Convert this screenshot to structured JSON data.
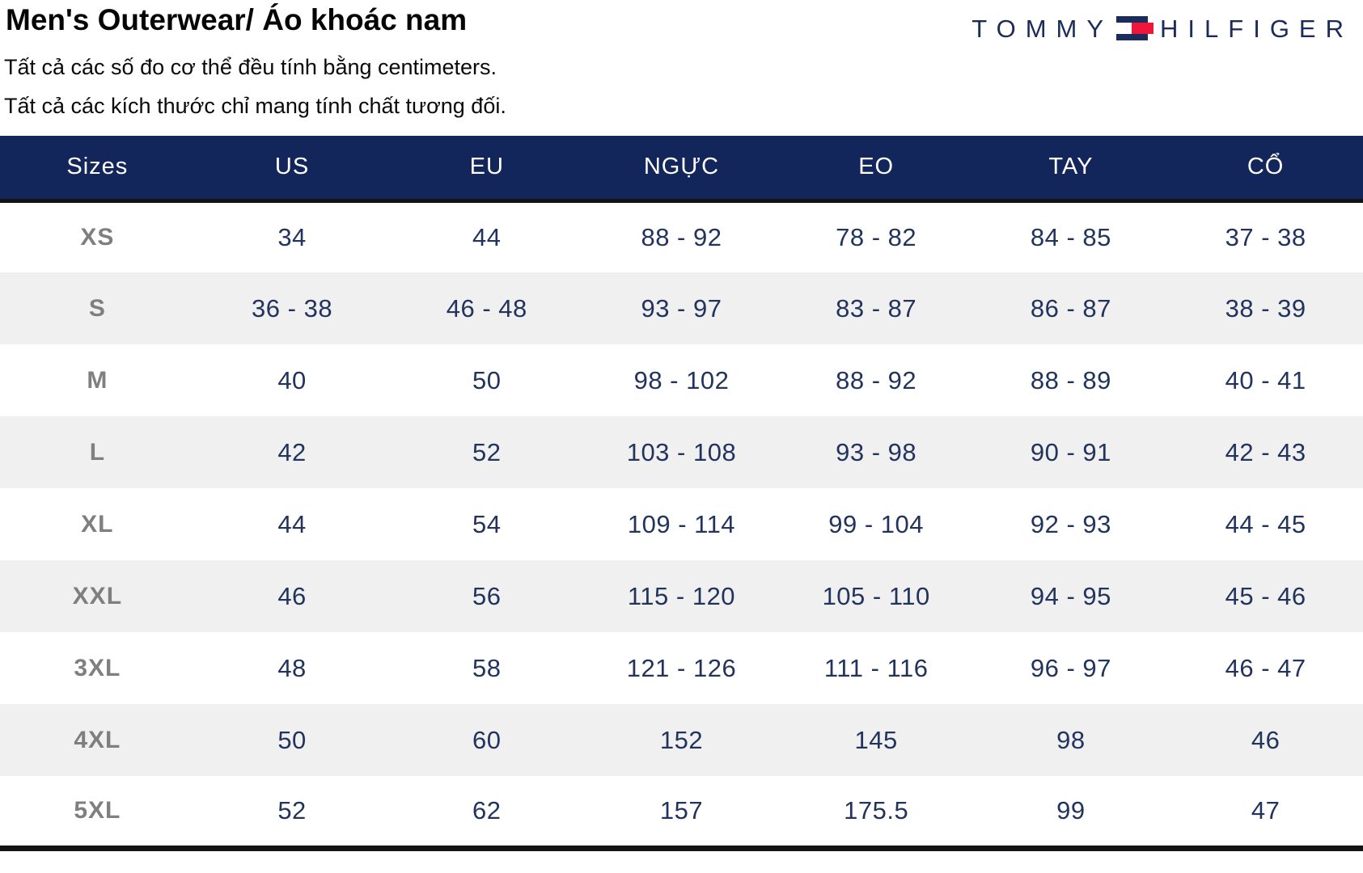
{
  "page": {
    "title": "Men's Outerwear/ Áo khoác nam",
    "subtitle_line1": "Tất cả các số đo cơ thể đều tính bằng centimeters.",
    "subtitle_line2": "Tất cả các kích thước chỉ mang tính chất tương đối."
  },
  "brand": {
    "word1": "TOMMY",
    "word2": "HILFIGER",
    "flag_icon": "tommy-hilfiger-flag-icon",
    "navy": "#1b2c5b",
    "red": "#f0153a"
  },
  "colors": {
    "header_background": "#12265b",
    "header_text": "#ffffff",
    "data_text": "#22345e",
    "size_label_text": "#7f7f7f",
    "alt_row_background": "#f0f0f0",
    "rule_black": "#141414"
  },
  "table": {
    "headers": [
      "Sizes",
      "US",
      "EU",
      "NGỰC",
      "EO",
      "TAY",
      "CỔ"
    ],
    "rows": [
      {
        "cells": [
          "XS",
          "34",
          "44",
          "88 - 92",
          "78 - 82",
          "84 - 85",
          "37 - 38"
        ]
      },
      {
        "cells": [
          "S",
          "36 - 38",
          "46 - 48",
          "93 - 97",
          "83 - 87",
          "86 - 87",
          "38 - 39"
        ]
      },
      {
        "cells": [
          "M",
          "40",
          "50",
          "98 - 102",
          "88 - 92",
          "88 - 89",
          "40 - 41"
        ]
      },
      {
        "cells": [
          "L",
          "42",
          "52",
          "103 - 108",
          "93 - 98",
          "90 - 91",
          "42 - 43"
        ]
      },
      {
        "cells": [
          "XL",
          "44",
          "54",
          "109 - 114",
          "99 - 104",
          "92 - 93",
          "44 - 45"
        ]
      },
      {
        "cells": [
          "XXL",
          "46",
          "56",
          "115 - 120",
          "105 - 110",
          "94 - 95",
          "45 - 46"
        ]
      },
      {
        "cells": [
          "3XL",
          "48",
          "58",
          "121 - 126",
          "111 - 116",
          "96 - 97",
          "46 - 47"
        ]
      },
      {
        "cells": [
          "4XL",
          "50",
          "60",
          "152",
          "145",
          "98",
          "46"
        ]
      },
      {
        "cells": [
          "5XL",
          "52",
          "62",
          "157",
          "175.5",
          "99",
          "47"
        ]
      }
    ],
    "unit": "centimeters"
  }
}
